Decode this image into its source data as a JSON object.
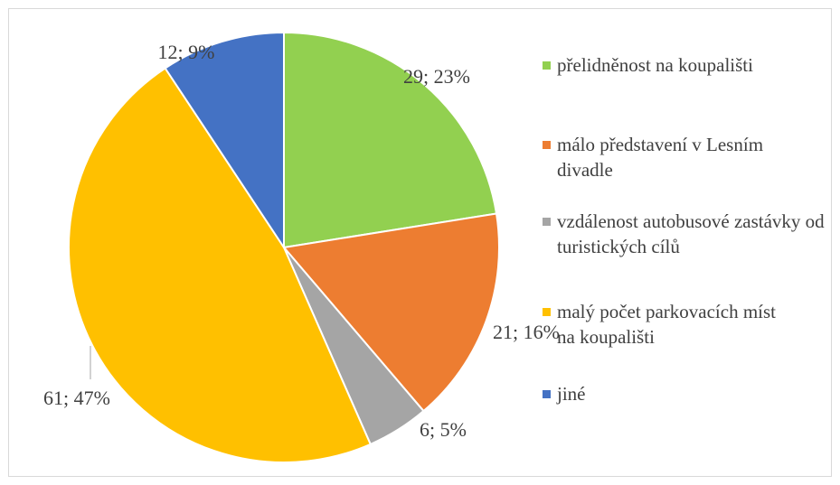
{
  "chart_data": {
    "type": "pie",
    "categories": [
      "přelidněnost na koupališti",
      "málo představení v Lesním divadle",
      "vzdálenost autobusové zastávky od turistických cílů",
      "malý počet parkovacích míst na koupališti",
      "jiné"
    ],
    "values": [
      29,
      21,
      6,
      61,
      12
    ],
    "value_labels": [
      "29; 23%",
      "21; 16%",
      "6; 5%",
      "61; 47%",
      "12; 9%"
    ],
    "colors": [
      "#92d050",
      "#ed7d31",
      "#a5a5a5",
      "#ffc000",
      "#4472c4"
    ],
    "legend": "right"
  }
}
